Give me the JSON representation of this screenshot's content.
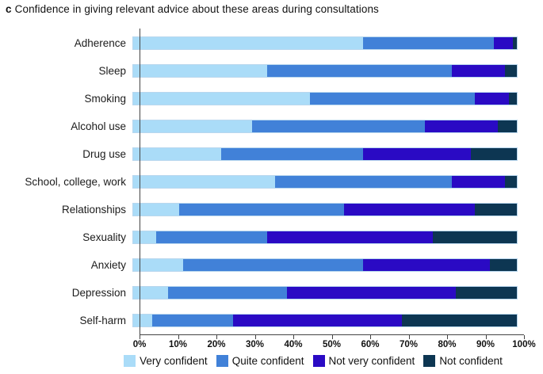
{
  "header": {
    "panel_label": "c",
    "title": "Confidence in giving relevant advice about these areas during consultations"
  },
  "chart_data": {
    "type": "bar",
    "orientation": "horizontal",
    "stacked": true,
    "title": "c Confidence in giving relevant advice about these areas during consultations",
    "xlabel": "",
    "ylabel": "",
    "xlim": [
      0,
      100
    ],
    "x_tick_labels": [
      "0%",
      "10%",
      "20%",
      "30%",
      "40%",
      "50%",
      "60%",
      "70%",
      "80%",
      "90%",
      "100%"
    ],
    "grid": false,
    "legend_position": "bottom",
    "categories": [
      "Adherence",
      "Sleep",
      "Smoking",
      "Alcohol use",
      "Drug use",
      "School, college, work",
      "Relationships",
      "Sexuality",
      "Anxiety",
      "Depression",
      "Self-harm"
    ],
    "series": [
      {
        "name": "Very confident",
        "color": "#aadcf8",
        "values": [
          60,
          35,
          46,
          31,
          23,
          37,
          12,
          6,
          13,
          9,
          5
        ]
      },
      {
        "name": "Quite confident",
        "color": "#4181d8",
        "values": [
          34,
          48,
          43,
          45,
          37,
          46,
          43,
          29,
          47,
          31,
          21
        ]
      },
      {
        "name": "Not very confident",
        "color": "#2a0ac4",
        "values": [
          5,
          14,
          9,
          19,
          28,
          14,
          34,
          43,
          33,
          44,
          44
        ]
      },
      {
        "name": "Not confident",
        "color": "#0d3652",
        "values": [
          1,
          3,
          2,
          5,
          12,
          3,
          11,
          22,
          7,
          16,
          30
        ]
      }
    ]
  }
}
